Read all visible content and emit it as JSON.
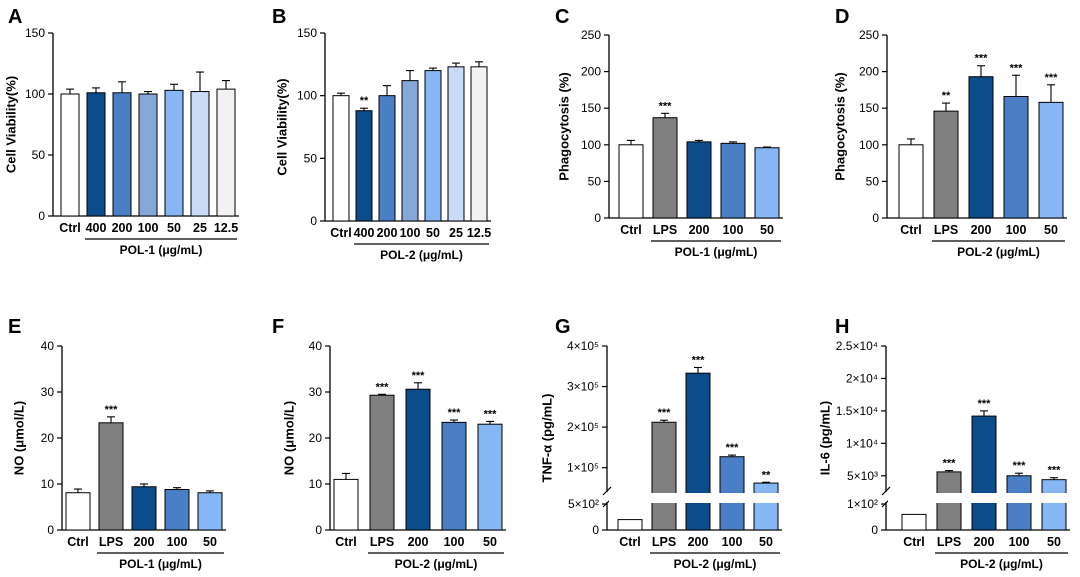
{
  "colors": {
    "white": "#ffffff",
    "gray": "#808080",
    "navy": "#0c4c8a",
    "blue": "#4a7fc6",
    "mid_blue": "#6d97d0",
    "light_blue": "#86b6f4",
    "pale_blue": "#c9dbf5",
    "off_white": "#f2f2f2"
  },
  "chart_data": [
    {
      "panel": "A",
      "type": "bar",
      "ylabel": "Cell Viability(%)",
      "xlabel": "POL-1 (μg/mL)",
      "ylim": [
        0,
        150
      ],
      "yticks": [
        0,
        50,
        100,
        150
      ],
      "categories": [
        "Ctrl",
        "400",
        "200",
        "100",
        "50",
        "25",
        "12.5"
      ],
      "values": [
        100,
        101,
        101,
        100,
        103,
        102,
        104
      ],
      "errors": [
        4,
        4,
        9,
        2,
        5,
        16,
        7
      ],
      "sig": [
        "",
        "",
        "",
        "",
        "",
        "",
        ""
      ],
      "fills": [
        "#ffffff",
        "#0c4c8a",
        "#4a7fc6",
        "#86a8d8",
        "#86b6f4",
        "#c9dbf5",
        "#f2f2f2"
      ]
    },
    {
      "panel": "B",
      "type": "bar",
      "ylabel": "Cell Viability(%)",
      "xlabel": "POL-2 (μg/mL)",
      "ylim": [
        0,
        150
      ],
      "yticks": [
        0,
        50,
        100,
        150
      ],
      "categories": [
        "Ctrl",
        "400",
        "200",
        "100",
        "50",
        "25",
        "12.5"
      ],
      "values": [
        100,
        88,
        100,
        112,
        120,
        123,
        123
      ],
      "errors": [
        2,
        2,
        8,
        8,
        2,
        3,
        4
      ],
      "sig": [
        "",
        "**",
        "",
        "",
        "",
        "",
        ""
      ],
      "fills": [
        "#ffffff",
        "#0c4c8a",
        "#4a7fc6",
        "#86a8d8",
        "#86b6f4",
        "#c9dbf5",
        "#f2f2f2"
      ]
    },
    {
      "panel": "C",
      "type": "bar",
      "ylabel": "Phagocytosis (%)",
      "xlabel": "POL-1 (μg/mL)",
      "ylim": [
        0,
        250
      ],
      "yticks": [
        0,
        50,
        100,
        150,
        200,
        250
      ],
      "categories": [
        "Ctrl",
        "LPS",
        "200",
        "100",
        "50"
      ],
      "values": [
        100,
        137,
        104,
        102,
        96
      ],
      "errors": [
        6,
        6,
        2,
        2,
        1
      ],
      "sig": [
        "",
        "***",
        "",
        "",
        ""
      ],
      "fills": [
        "#ffffff",
        "#808080",
        "#0c4c8a",
        "#4a7fc6",
        "#86b6f4"
      ]
    },
    {
      "panel": "D",
      "type": "bar",
      "ylabel": "Phagocytosis (%)",
      "xlabel": "POL-2 (μg/mL)",
      "ylim": [
        0,
        250
      ],
      "yticks": [
        0,
        50,
        100,
        150,
        200,
        250
      ],
      "categories": [
        "Ctrl",
        "LPS",
        "200",
        "100",
        "50"
      ],
      "values": [
        100,
        146,
        193,
        166,
        158
      ],
      "errors": [
        8,
        11,
        15,
        29,
        24
      ],
      "sig": [
        "",
        "**",
        "***",
        "***",
        "***"
      ],
      "fills": [
        "#ffffff",
        "#808080",
        "#0c4c8a",
        "#4a7fc6",
        "#86b6f4"
      ]
    },
    {
      "panel": "E",
      "type": "bar",
      "ylabel": "NO (μmol/L)",
      "xlabel": "POL-1 (μg/mL)",
      "ylim": [
        0,
        40
      ],
      "yticks": [
        0,
        10,
        20,
        30,
        40
      ],
      "categories": [
        "Ctrl",
        "LPS",
        "200",
        "100",
        "50"
      ],
      "values": [
        8.1,
        23.3,
        9.4,
        8.8,
        8.1
      ],
      "errors": [
        0.8,
        1.3,
        0.6,
        0.4,
        0.4
      ],
      "sig": [
        "",
        "***",
        "",
        "",
        ""
      ],
      "fills": [
        "#ffffff",
        "#808080",
        "#0c4c8a",
        "#4a7fc6",
        "#86b6f4"
      ]
    },
    {
      "panel": "F",
      "type": "bar",
      "ylabel": "NO (μmol/L)",
      "xlabel": "POL-2 (μg/mL)",
      "ylim": [
        0,
        40
      ],
      "yticks": [
        0,
        10,
        20,
        30,
        40
      ],
      "categories": [
        "Ctrl",
        "LPS",
        "200",
        "100",
        "50"
      ],
      "values": [
        11.0,
        29.3,
        30.6,
        23.4,
        23.0
      ],
      "errors": [
        1.3,
        0.2,
        1.4,
        0.5,
        0.6
      ],
      "sig": [
        "",
        "***",
        "***",
        "***",
        "***"
      ],
      "fills": [
        "#ffffff",
        "#808080",
        "#0c4c8a",
        "#4a7fc6",
        "#86b6f4"
      ]
    },
    {
      "panel": "G",
      "type": "bar",
      "ylabel": "TNF-α (pg/mL)",
      "xlabel": "POL-2 (μg/mL)",
      "broken_axis": true,
      "lower_ylim": [
        0,
        500
      ],
      "lower_ticks": [
        {
          "v": 0,
          "t": "0"
        },
        {
          "v": 500,
          "t": "5×10²"
        }
      ],
      "upper_ylim": [
        40000,
        400000
      ],
      "upper_ticks": [
        {
          "v": 100000,
          "t": "1×10⁵"
        },
        {
          "v": 200000,
          "t": "2×10⁵"
        },
        {
          "v": 300000,
          "t": "3×10⁵"
        },
        {
          "v": 400000,
          "t": "4×10⁵"
        }
      ],
      "categories": [
        "Ctrl",
        "LPS",
        "200",
        "100",
        "50"
      ],
      "values": [
        200,
        212000,
        333000,
        127000,
        62000
      ],
      "errors": [
        0,
        5000,
        14000,
        4000,
        2000
      ],
      "sig": [
        "",
        "***",
        "***",
        "***",
        "**"
      ],
      "fills": [
        "#ffffff",
        "#808080",
        "#0c4c8a",
        "#4a7fc6",
        "#86b6f4"
      ]
    },
    {
      "panel": "H",
      "type": "bar",
      "ylabel": "IL-6 (pg/mL)",
      "xlabel": "POL-2 (μg/mL)",
      "broken_axis": true,
      "lower_ylim": [
        0,
        100
      ],
      "lower_ticks": [
        {
          "v": 0,
          "t": "0"
        },
        {
          "v": 100,
          "t": "1×10²"
        }
      ],
      "upper_ylim": [
        2500,
        25000
      ],
      "upper_ticks": [
        {
          "v": 5000,
          "t": "5×10³"
        },
        {
          "v": 10000,
          "t": "1×10⁴"
        },
        {
          "v": 15000,
          "t": "1.5×10⁴"
        },
        {
          "v": 20000,
          "t": "2×10⁴"
        },
        {
          "v": 25000,
          "t": "2.5×10⁴"
        }
      ],
      "categories": [
        "Ctrl",
        "LPS",
        "200",
        "100",
        "50"
      ],
      "values": [
        60,
        5600,
        14200,
        5000,
        4400
      ],
      "errors": [
        0,
        200,
        800,
        400,
        300
      ],
      "sig": [
        "",
        "***",
        "***",
        "***",
        "***"
      ],
      "fills": [
        "#ffffff",
        "#808080",
        "#0c4c8a",
        "#4a7fc6",
        "#86b6f4"
      ]
    }
  ]
}
